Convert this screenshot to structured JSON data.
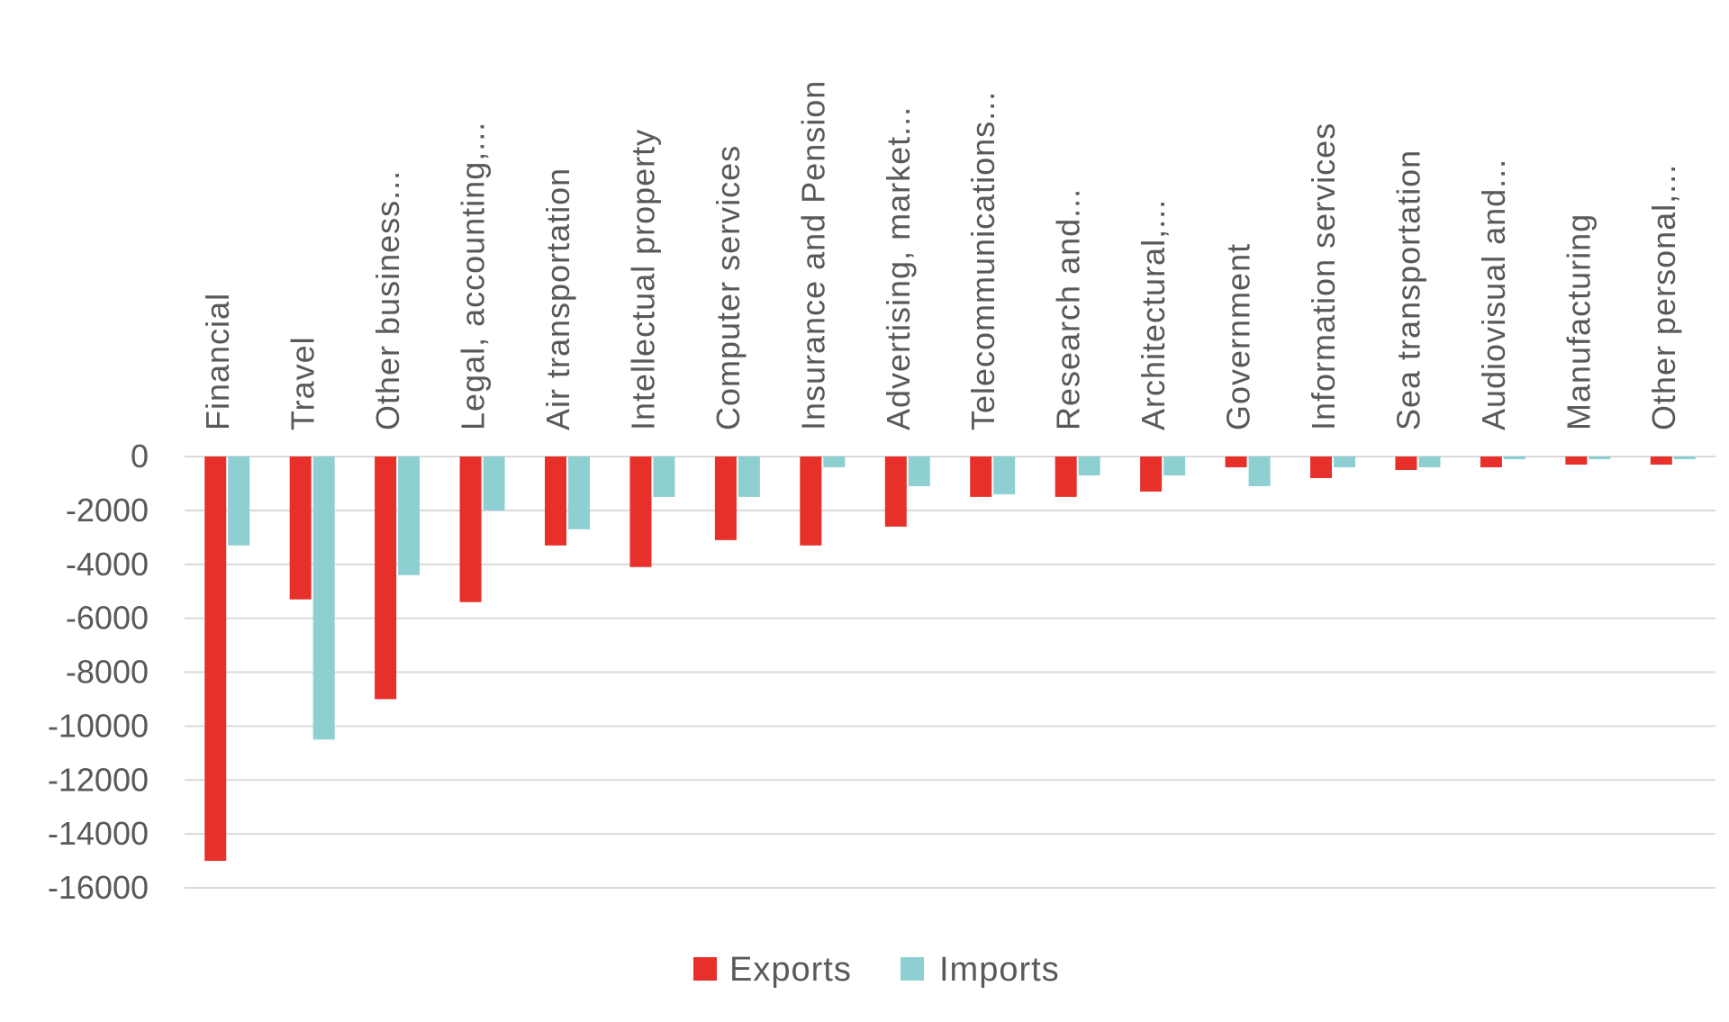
{
  "chart_data": {
    "type": "bar",
    "title": "",
    "xlabel": "",
    "ylabel": "",
    "ylim": [
      -16000,
      0
    ],
    "yticks": [
      0,
      -2000,
      -4000,
      -6000,
      -8000,
      -10000,
      -12000,
      -14000,
      -16000
    ],
    "grid": true,
    "legend": "bottom",
    "categories": [
      "Financial",
      "Travel",
      "Other business...",
      "Legal, accounting,...",
      "Air transportation",
      "Intellectual property",
      "Computer services",
      "Insurance and Pension",
      "Advertising, market...",
      "Telecommunications...",
      "Research and...",
      "Architectural,...",
      "Government",
      "Information services",
      "Sea transportation",
      "Audiovisual and...",
      "Manufacturing",
      "Other personal,..."
    ],
    "series": [
      {
        "name": "Exports",
        "color": "#e8302a",
        "values": [
          -15000,
          -5300,
          -9000,
          -5400,
          -3300,
          -4100,
          -3100,
          -3300,
          -2600,
          -1500,
          -1500,
          -1300,
          -400,
          -800,
          -500,
          -400,
          -300,
          -300
        ]
      },
      {
        "name": "Imports",
        "color": "#8ecfd2",
        "values": [
          -3300,
          -10500,
          -4400,
          -2000,
          -2700,
          -1500,
          -1500,
          -400,
          -1100,
          -1400,
          -700,
          -700,
          -1100,
          -400,
          -400,
          -100,
          -100,
          -100
        ]
      }
    ]
  }
}
